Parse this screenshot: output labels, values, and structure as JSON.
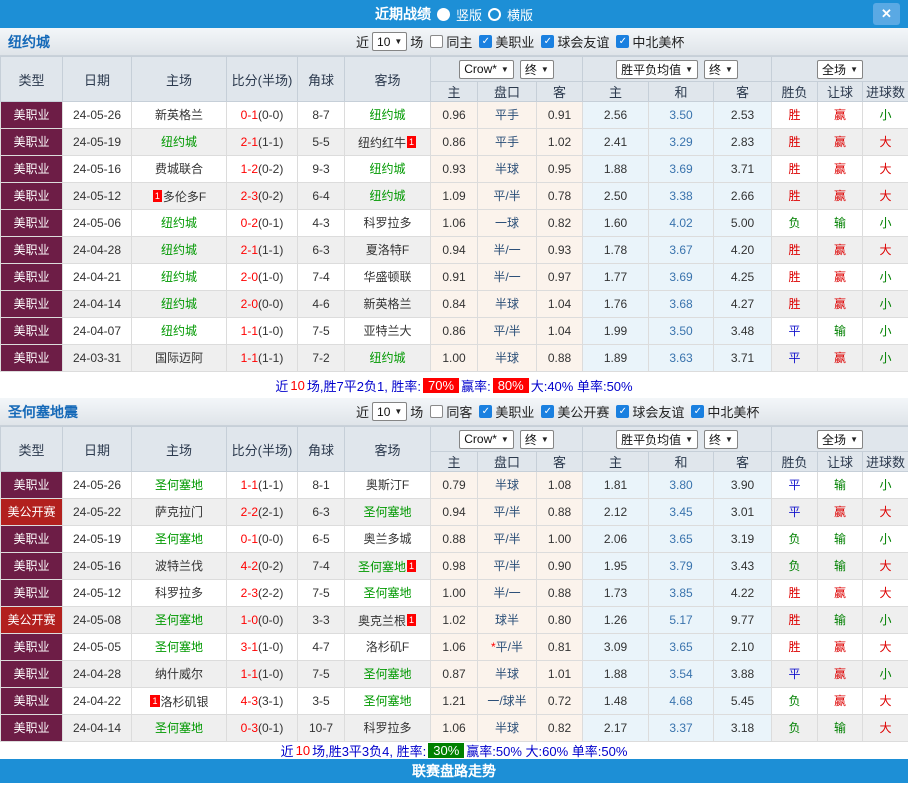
{
  "icons": {
    "close": "✕",
    "caret": "▼",
    "check": "✓"
  },
  "topbar": {
    "title": "近期战绩",
    "radios": [
      {
        "label": "竖版",
        "selected": true
      },
      {
        "label": "横版",
        "selected": false
      }
    ]
  },
  "columns": {
    "type": "类型",
    "date": "日期",
    "home": "主场",
    "score": "比分(半场)",
    "corner": "角球",
    "away": "客场",
    "odds_select": "Crow*",
    "odds_final": "终",
    "avg_select": "胜平负均值",
    "avg_final": "终",
    "period_select": "全场",
    "odds_sub": [
      "主",
      "盘口",
      "客"
    ],
    "avg_sub": [
      "主",
      "和",
      "客"
    ],
    "result_sub": [
      "胜负",
      "让球",
      "进球数"
    ]
  },
  "sections": [
    {
      "team": "纽约城",
      "filters": {
        "near": "近",
        "count": "10",
        "games": "场",
        "same": {
          "label": "同主",
          "checked": false
        },
        "leagues": [
          {
            "label": "美职业",
            "checked": true
          },
          {
            "label": "球会友谊",
            "checked": true
          },
          {
            "label": "中北美杯",
            "checked": true
          }
        ]
      },
      "rows": [
        {
          "type": "美职业",
          "date": "24-05-26",
          "home": {
            "name": "新英格兰",
            "green": false
          },
          "score": "0-1",
          "half": "(0-0)",
          "corner": "8-7",
          "away": {
            "name": "纽约城",
            "green": true
          },
          "odds": [
            "0.96",
            "平手",
            "0.91"
          ],
          "avg": [
            "2.56",
            "3.50",
            "2.53"
          ],
          "results": [
            "胜",
            "赢",
            "小"
          ]
        },
        {
          "type": "美职业",
          "date": "24-05-19",
          "home": {
            "name": "纽约城",
            "green": true
          },
          "score": "2-1",
          "half": "(1-1)",
          "corner": "5-5",
          "away": {
            "name": "纽约红牛",
            "green": false,
            "badge": "1",
            "badge_pos": "after"
          },
          "odds": [
            "0.86",
            "平手",
            "1.02"
          ],
          "avg": [
            "2.41",
            "3.29",
            "2.83"
          ],
          "results": [
            "胜",
            "赢",
            "大"
          ]
        },
        {
          "type": "美职业",
          "date": "24-05-16",
          "home": {
            "name": "费城联合",
            "green": false
          },
          "score": "1-2",
          "half": "(0-2)",
          "corner": "9-3",
          "away": {
            "name": "纽约城",
            "green": true
          },
          "odds": [
            "0.93",
            "半球",
            "0.95"
          ],
          "avg": [
            "1.88",
            "3.69",
            "3.71"
          ],
          "results": [
            "胜",
            "赢",
            "大"
          ]
        },
        {
          "type": "美职业",
          "date": "24-05-12",
          "home": {
            "name": "多伦多F",
            "green": false,
            "badge": "1",
            "badge_pos": "before"
          },
          "score": "2-3",
          "half": "(0-2)",
          "corner": "6-4",
          "away": {
            "name": "纽约城",
            "green": true
          },
          "odds": [
            "1.09",
            "平/半",
            "0.78"
          ],
          "avg": [
            "2.50",
            "3.38",
            "2.66"
          ],
          "results": [
            "胜",
            "赢",
            "大"
          ]
        },
        {
          "type": "美职业",
          "date": "24-05-06",
          "home": {
            "name": "纽约城",
            "green": true
          },
          "score": "0-2",
          "half": "(0-1)",
          "corner": "4-3",
          "away": {
            "name": "科罗拉多",
            "green": false
          },
          "odds": [
            "1.06",
            "一球",
            "0.82"
          ],
          "avg": [
            "1.60",
            "4.02",
            "5.00"
          ],
          "results": [
            "负",
            "输",
            "小"
          ]
        },
        {
          "type": "美职业",
          "date": "24-04-28",
          "home": {
            "name": "纽约城",
            "green": true
          },
          "score": "2-1",
          "half": "(1-1)",
          "corner": "6-3",
          "away": {
            "name": "夏洛特F",
            "green": false
          },
          "odds": [
            "0.94",
            "半/一",
            "0.93"
          ],
          "avg": [
            "1.78",
            "3.67",
            "4.20"
          ],
          "results": [
            "胜",
            "赢",
            "大"
          ]
        },
        {
          "type": "美职业",
          "date": "24-04-21",
          "home": {
            "name": "纽约城",
            "green": true
          },
          "score": "2-0",
          "half": "(1-0)",
          "corner": "7-4",
          "away": {
            "name": "华盛顿联",
            "green": false
          },
          "odds": [
            "0.91",
            "半/一",
            "0.97"
          ],
          "avg": [
            "1.77",
            "3.69",
            "4.25"
          ],
          "results": [
            "胜",
            "赢",
            "小"
          ]
        },
        {
          "type": "美职业",
          "date": "24-04-14",
          "home": {
            "name": "纽约城",
            "green": true
          },
          "score": "2-0",
          "half": "(0-0)",
          "corner": "4-6",
          "away": {
            "name": "新英格兰",
            "green": false
          },
          "odds": [
            "0.84",
            "半球",
            "1.04"
          ],
          "avg": [
            "1.76",
            "3.68",
            "4.27"
          ],
          "results": [
            "胜",
            "赢",
            "小"
          ]
        },
        {
          "type": "美职业",
          "date": "24-04-07",
          "home": {
            "name": "纽约城",
            "green": true
          },
          "score": "1-1",
          "half": "(1-0)",
          "corner": "7-5",
          "away": {
            "name": "亚特兰大",
            "green": false
          },
          "odds": [
            "0.86",
            "平/半",
            "1.04"
          ],
          "avg": [
            "1.99",
            "3.50",
            "3.48"
          ],
          "results": [
            "平",
            "输",
            "小"
          ]
        },
        {
          "type": "美职业",
          "date": "24-03-31",
          "home": {
            "name": "国际迈阿",
            "green": false
          },
          "score": "1-1",
          "half": "(1-1)",
          "corner": "7-2",
          "away": {
            "name": "纽约城",
            "green": true
          },
          "odds": [
            "1.00",
            "半球",
            "0.88"
          ],
          "avg": [
            "1.89",
            "3.63",
            "3.71"
          ],
          "results": [
            "平",
            "赢",
            "小"
          ]
        }
      ],
      "summary": [
        {
          "text": "近",
          "style": "plain"
        },
        {
          "text": "10",
          "style": "red"
        },
        {
          "text": "场,胜7平2负1, 胜率:",
          "style": "plain"
        },
        {
          "text": "70%",
          "style": "badge-red"
        },
        {
          "text": " 赢率:",
          "style": "plain"
        },
        {
          "text": "80%",
          "style": "badge-red"
        },
        {
          "text": " 大:40% 单率:50%",
          "style": "plain"
        }
      ]
    },
    {
      "team": "圣何塞地震",
      "filters": {
        "near": "近",
        "count": "10",
        "games": "场",
        "same": {
          "label": "同客",
          "checked": false
        },
        "leagues": [
          {
            "label": "美职业",
            "checked": true
          },
          {
            "label": "美公开赛",
            "checked": true
          },
          {
            "label": "球会友谊",
            "checked": true
          },
          {
            "label": "中北美杯",
            "checked": true
          }
        ]
      },
      "rows": [
        {
          "type": "美职业",
          "date": "24-05-26",
          "home": {
            "name": "圣何塞地",
            "green": true
          },
          "score": "1-1",
          "half": "(1-1)",
          "corner": "8-1",
          "away": {
            "name": "奥斯汀F",
            "green": false
          },
          "odds": [
            "0.79",
            "半球",
            "1.08"
          ],
          "avg": [
            "1.81",
            "3.80",
            "3.90"
          ],
          "results": [
            "平",
            "输",
            "小"
          ]
        },
        {
          "type": "美公开赛",
          "date": "24-05-22",
          "home": {
            "name": "萨克拉门",
            "green": false
          },
          "score": "2-2",
          "half": "(2-1)",
          "corner": "6-3",
          "away": {
            "name": "圣何塞地",
            "green": true
          },
          "odds": [
            "0.94",
            "平/半",
            "0.88"
          ],
          "avg": [
            "2.12",
            "3.45",
            "3.01"
          ],
          "results": [
            "平",
            "赢",
            "大"
          ]
        },
        {
          "type": "美职业",
          "date": "24-05-19",
          "home": {
            "name": "圣何塞地",
            "green": true
          },
          "score": "0-1",
          "half": "(0-0)",
          "corner": "6-5",
          "away": {
            "name": "奥兰多城",
            "green": false
          },
          "odds": [
            "0.88",
            "平/半",
            "1.00"
          ],
          "avg": [
            "2.06",
            "3.65",
            "3.19"
          ],
          "results": [
            "负",
            "输",
            "小"
          ]
        },
        {
          "type": "美职业",
          "date": "24-05-16",
          "home": {
            "name": "波特兰伐",
            "green": false
          },
          "score": "4-2",
          "half": "(0-2)",
          "corner": "7-4",
          "away": {
            "name": "圣何塞地",
            "green": true,
            "badge": "1",
            "badge_pos": "after"
          },
          "odds": [
            "0.98",
            "平/半",
            "0.90"
          ],
          "avg": [
            "1.95",
            "3.79",
            "3.43"
          ],
          "results": [
            "负",
            "输",
            "大"
          ]
        },
        {
          "type": "美职业",
          "date": "24-05-12",
          "home": {
            "name": "科罗拉多",
            "green": false
          },
          "score": "2-3",
          "half": "(2-2)",
          "corner": "7-5",
          "away": {
            "name": "圣何塞地",
            "green": true
          },
          "odds": [
            "1.00",
            "半/一",
            "0.88"
          ],
          "avg": [
            "1.73",
            "3.85",
            "4.22"
          ],
          "results": [
            "胜",
            "赢",
            "大"
          ]
        },
        {
          "type": "美公开赛",
          "date": "24-05-08",
          "home": {
            "name": "圣何塞地",
            "green": true
          },
          "score": "1-0",
          "half": "(0-0)",
          "corner": "3-3",
          "away": {
            "name": "奥克兰根",
            "green": false,
            "badge": "1",
            "badge_pos": "after"
          },
          "odds": [
            "1.02",
            "球半",
            "0.80"
          ],
          "avg": [
            "1.26",
            "5.17",
            "9.77"
          ],
          "results": [
            "胜",
            "输",
            "小"
          ]
        },
        {
          "type": "美职业",
          "date": "24-05-05",
          "home": {
            "name": "圣何塞地",
            "green": true
          },
          "score": "3-1",
          "half": "(1-0)",
          "corner": "4-7",
          "away": {
            "name": "洛杉矶F",
            "green": false
          },
          "odds": [
            "1.06",
            "*平/半",
            "0.81"
          ],
          "avg": [
            "3.09",
            "3.65",
            "2.10"
          ],
          "results": [
            "胜",
            "赢",
            "大"
          ]
        },
        {
          "type": "美职业",
          "date": "24-04-28",
          "home": {
            "name": "纳什威尔",
            "green": false
          },
          "score": "1-1",
          "half": "(1-0)",
          "corner": "7-5",
          "away": {
            "name": "圣何塞地",
            "green": true
          },
          "odds": [
            "0.87",
            "半球",
            "1.01"
          ],
          "avg": [
            "1.88",
            "3.54",
            "3.88"
          ],
          "results": [
            "平",
            "赢",
            "小"
          ]
        },
        {
          "type": "美职业",
          "date": "24-04-22",
          "home": {
            "name": "洛杉矶银",
            "green": false,
            "badge": "1",
            "badge_pos": "before"
          },
          "score": "4-3",
          "half": "(3-1)",
          "corner": "3-5",
          "away": {
            "name": "圣何塞地",
            "green": true
          },
          "odds": [
            "1.21",
            "一/球半",
            "0.72"
          ],
          "avg": [
            "1.48",
            "4.68",
            "5.45"
          ],
          "results": [
            "负",
            "赢",
            "大"
          ]
        },
        {
          "type": "美职业",
          "date": "24-04-14",
          "home": {
            "name": "圣何塞地",
            "green": true
          },
          "score": "0-3",
          "half": "(0-1)",
          "corner": "10-7",
          "away": {
            "name": "科罗拉多",
            "green": false
          },
          "odds": [
            "1.06",
            "半球",
            "0.82"
          ],
          "avg": [
            "2.17",
            "3.37",
            "3.18"
          ],
          "results": [
            "负",
            "输",
            "大"
          ]
        }
      ],
      "summary": [
        {
          "text": "近",
          "style": "plain"
        },
        {
          "text": "10",
          "style": "red"
        },
        {
          "text": "场,胜3平3负4, 胜率:",
          "style": "plain"
        },
        {
          "text": "30%",
          "style": "badge-green"
        },
        {
          "text": " 赢率:50% 大:60% 单率:50%",
          "style": "plain"
        }
      ]
    }
  ],
  "footer": {
    "label": "联赛盘路走势"
  }
}
